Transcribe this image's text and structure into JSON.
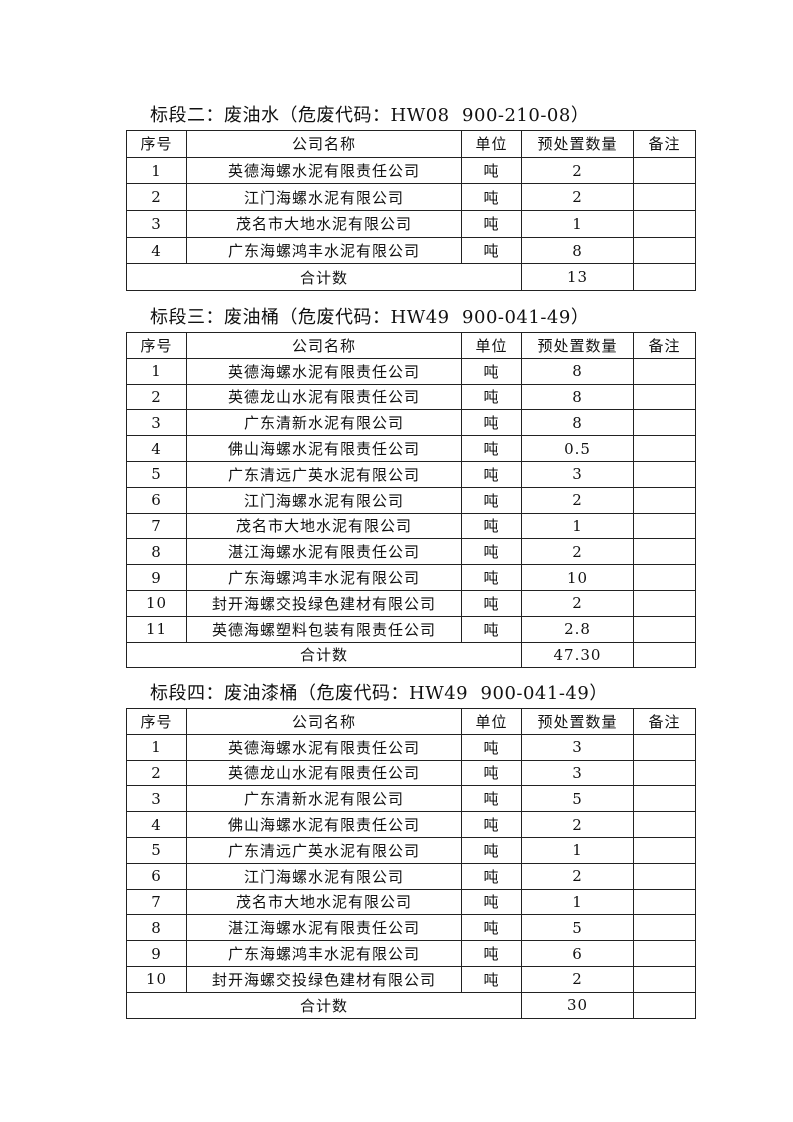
{
  "headers": [
    "序号",
    "公司名称",
    "单位",
    "预处置数量",
    "备注"
  ],
  "total_label": "合计数",
  "sections": [
    {
      "title": "标段二：废油水（危废代码：HW08  900-210-08）",
      "rows": [
        [
          "1",
          "英德海螺水泥有限责任公司",
          "吨",
          "2",
          ""
        ],
        [
          "2",
          "江门海螺水泥有限公司",
          "吨",
          "2",
          ""
        ],
        [
          "3",
          "茂名市大地水泥有限公司",
          "吨",
          "1",
          ""
        ],
        [
          "4",
          "广东海螺鸿丰水泥有限公司",
          "吨",
          "8",
          ""
        ]
      ],
      "total": "13"
    },
    {
      "title": "标段三：废油桶（危废代码：HW49  900-041-49）",
      "rows": [
        [
          "1",
          "英德海螺水泥有限责任公司",
          "吨",
          "8",
          ""
        ],
        [
          "2",
          "英德龙山水泥有限责任公司",
          "吨",
          "8",
          ""
        ],
        [
          "3",
          "广东清新水泥有限公司",
          "吨",
          "8",
          ""
        ],
        [
          "4",
          "佛山海螺水泥有限责任公司",
          "吨",
          "0.5",
          ""
        ],
        [
          "5",
          "广东清远广英水泥有限公司",
          "吨",
          "3",
          ""
        ],
        [
          "6",
          "江门海螺水泥有限公司",
          "吨",
          "2",
          ""
        ],
        [
          "7",
          "茂名市大地水泥有限公司",
          "吨",
          "1",
          ""
        ],
        [
          "8",
          "湛江海螺水泥有限责任公司",
          "吨",
          "2",
          ""
        ],
        [
          "9",
          "广东海螺鸿丰水泥有限公司",
          "吨",
          "10",
          ""
        ],
        [
          "10",
          "封开海螺交投绿色建材有限公司",
          "吨",
          "2",
          ""
        ],
        [
          "11",
          "英德海螺塑料包装有限责任公司",
          "吨",
          "2.8",
          ""
        ]
      ],
      "total": "47.30"
    },
    {
      "title": "标段四：废油漆桶（危废代码：HW49  900-041-49）",
      "rows": [
        [
          "1",
          "英德海螺水泥有限责任公司",
          "吨",
          "3",
          ""
        ],
        [
          "2",
          "英德龙山水泥有限责任公司",
          "吨",
          "3",
          ""
        ],
        [
          "3",
          "广东清新水泥有限公司",
          "吨",
          "5",
          ""
        ],
        [
          "4",
          "佛山海螺水泥有限责任公司",
          "吨",
          "2",
          ""
        ],
        [
          "5",
          "广东清远广英水泥有限公司",
          "吨",
          "1",
          ""
        ],
        [
          "6",
          "江门海螺水泥有限公司",
          "吨",
          "2",
          ""
        ],
        [
          "7",
          "茂名市大地水泥有限公司",
          "吨",
          "1",
          ""
        ],
        [
          "8",
          "湛江海螺水泥有限责任公司",
          "吨",
          "5",
          ""
        ],
        [
          "9",
          "广东海螺鸿丰水泥有限公司",
          "吨",
          "6",
          ""
        ],
        [
          "10",
          "封开海螺交投绿色建材有限公司",
          "吨",
          "2",
          ""
        ]
      ],
      "total": "30"
    }
  ]
}
